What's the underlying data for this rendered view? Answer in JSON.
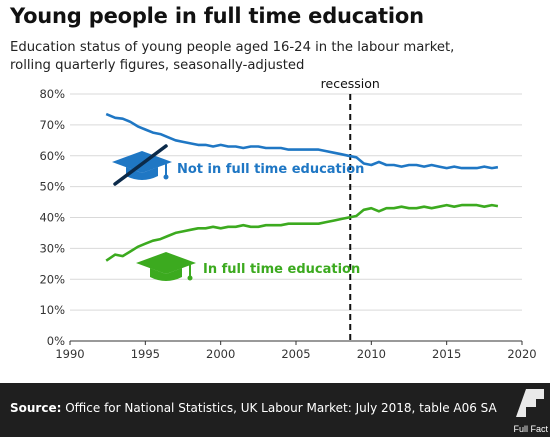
{
  "header": {
    "title": "Young people in full time education",
    "subtitle_line1": "Education status of young people aged 16-24 in the labour market,",
    "subtitle_line2": "rolling quarterly figures, seasonally-adjusted"
  },
  "chart_data": {
    "type": "line",
    "title": "Young people in full time education",
    "subtitle": "Education status of young people aged 16-24 in the labour market, rolling quarterly figures, seasonally-adjusted",
    "xlabel": "",
    "ylabel": "",
    "xlim": [
      1990,
      2020
    ],
    "ylim": [
      0,
      80
    ],
    "x_ticks": [
      1990,
      1995,
      2000,
      2005,
      2010,
      2015,
      2020
    ],
    "y_ticks": [
      0,
      10,
      20,
      30,
      40,
      50,
      60,
      70,
      80
    ],
    "y_tick_labels": [
      "0%",
      "10%",
      "20%",
      "30%",
      "40%",
      "50%",
      "60%",
      "70%",
      "80%"
    ],
    "grid": "horizontal",
    "legend": "direct labels on series",
    "annotation": {
      "label": "recession",
      "x": 2008.6,
      "style": "dashed vertical line"
    },
    "series": [
      {
        "name": "Not in full time education",
        "color": "#1f77c4",
        "x": [
          1992.4,
          1993,
          1993.5,
          1994,
          1994.5,
          1995,
          1995.5,
          1996,
          1996.5,
          1997,
          1997.5,
          1998,
          1998.5,
          1999,
          1999.5,
          2000,
          2000.5,
          2001,
          2001.5,
          2002,
          2002.5,
          2003,
          2003.5,
          2004,
          2004.5,
          2005,
          2005.5,
          2006,
          2006.5,
          2007,
          2007.5,
          2008,
          2008.5,
          2009,
          2009.5,
          2010,
          2010.5,
          2011,
          2011.5,
          2012,
          2012.5,
          2013,
          2013.5,
          2014,
          2014.5,
          2015,
          2015.5,
          2016,
          2016.5,
          2017,
          2017.5,
          2018,
          2018.4
        ],
        "values": [
          73.5,
          72.3,
          72,
          71,
          69.5,
          68.5,
          67.5,
          67,
          66,
          65,
          64.5,
          64,
          63.5,
          63.5,
          63,
          63.5,
          63,
          63,
          62.5,
          63,
          63,
          62.5,
          62.5,
          62.5,
          62,
          62,
          62,
          62,
          62,
          61.5,
          61,
          60.5,
          60,
          59.5,
          57.5,
          57,
          58,
          57,
          57,
          56.5,
          57,
          57,
          56.5,
          57,
          56.5,
          56,
          56.5,
          56,
          56,
          56,
          56.5,
          56,
          56.3
        ]
      },
      {
        "name": "In full time education",
        "color": "#3caa1f",
        "x": [
          1992.4,
          1993,
          1993.5,
          1994,
          1994.5,
          1995,
          1995.5,
          1996,
          1996.5,
          1997,
          1997.5,
          1998,
          1998.5,
          1999,
          1999.5,
          2000,
          2000.5,
          2001,
          2001.5,
          2002,
          2002.5,
          2003,
          2003.5,
          2004,
          2004.5,
          2005,
          2005.5,
          2006,
          2006.5,
          2007,
          2007.5,
          2008,
          2008.5,
          2009,
          2009.5,
          2010,
          2010.5,
          2011,
          2011.5,
          2012,
          2012.5,
          2013,
          2013.5,
          2014,
          2014.5,
          2015,
          2015.5,
          2016,
          2016.5,
          2017,
          2017.5,
          2018,
          2018.4
        ],
        "values": [
          26,
          28,
          27.5,
          29,
          30.5,
          31.5,
          32.5,
          33,
          34,
          35,
          35.5,
          36,
          36.5,
          36.5,
          37,
          36.5,
          37,
          37,
          37.5,
          37,
          37,
          37.5,
          37.5,
          37.5,
          38,
          38,
          38,
          38,
          38,
          38.5,
          39,
          39.5,
          40,
          40.5,
          42.5,
          43,
          42,
          43,
          43,
          43.5,
          43,
          43,
          43.5,
          43,
          43.5,
          44,
          43.5,
          44,
          44,
          44,
          43.5,
          44,
          43.7
        ]
      }
    ]
  },
  "labels": {
    "recession": "recession",
    "series_not_in_fte": "Not in full time education",
    "series_in_fte": "In full time education"
  },
  "footer": {
    "source_label": "Source:",
    "source_text": "Office for National Statistics, UK Labour Market: July 2018, table A06 SA",
    "logo_text": "Full Fact"
  }
}
